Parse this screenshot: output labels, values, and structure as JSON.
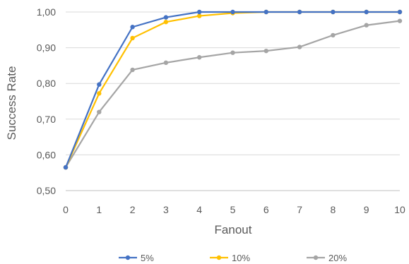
{
  "chart_data": {
    "type": "line",
    "title": "",
    "xlabel": "Fanout",
    "ylabel": "Success Rate",
    "x": [
      0,
      1,
      2,
      3,
      4,
      5,
      6,
      7,
      8,
      9,
      10
    ],
    "x_tick_labels": [
      "0",
      "1",
      "2",
      "3",
      "4",
      "5",
      "6",
      "7",
      "8",
      "9",
      "10"
    ],
    "ylim": [
      0.5,
      1.0
    ],
    "y_ticks": [
      0.5,
      0.6,
      0.7,
      0.8,
      0.9,
      1.0
    ],
    "y_tick_labels": [
      "0,50",
      "0,60",
      "0,70",
      "0,80",
      "0,90",
      "1,00"
    ],
    "grid": true,
    "legend_position": "bottom",
    "series": [
      {
        "name": "5%",
        "color": "#4472c4",
        "values": [
          0.565,
          0.797,
          0.958,
          0.985,
          1.0,
          1.0,
          1.0,
          1.0,
          1.0,
          1.0,
          1.0
        ]
      },
      {
        "name": "10%",
        "color": "#ffc000",
        "values": [
          0.565,
          0.772,
          0.927,
          0.972,
          0.989,
          0.997,
          1.0,
          1.0,
          1.0,
          1.0,
          1.0
        ]
      },
      {
        "name": "20%",
        "color": "#a5a5a5",
        "values": [
          0.565,
          0.72,
          0.838,
          0.858,
          0.873,
          0.886,
          0.891,
          0.902,
          0.935,
          0.963,
          0.975
        ]
      }
    ]
  }
}
